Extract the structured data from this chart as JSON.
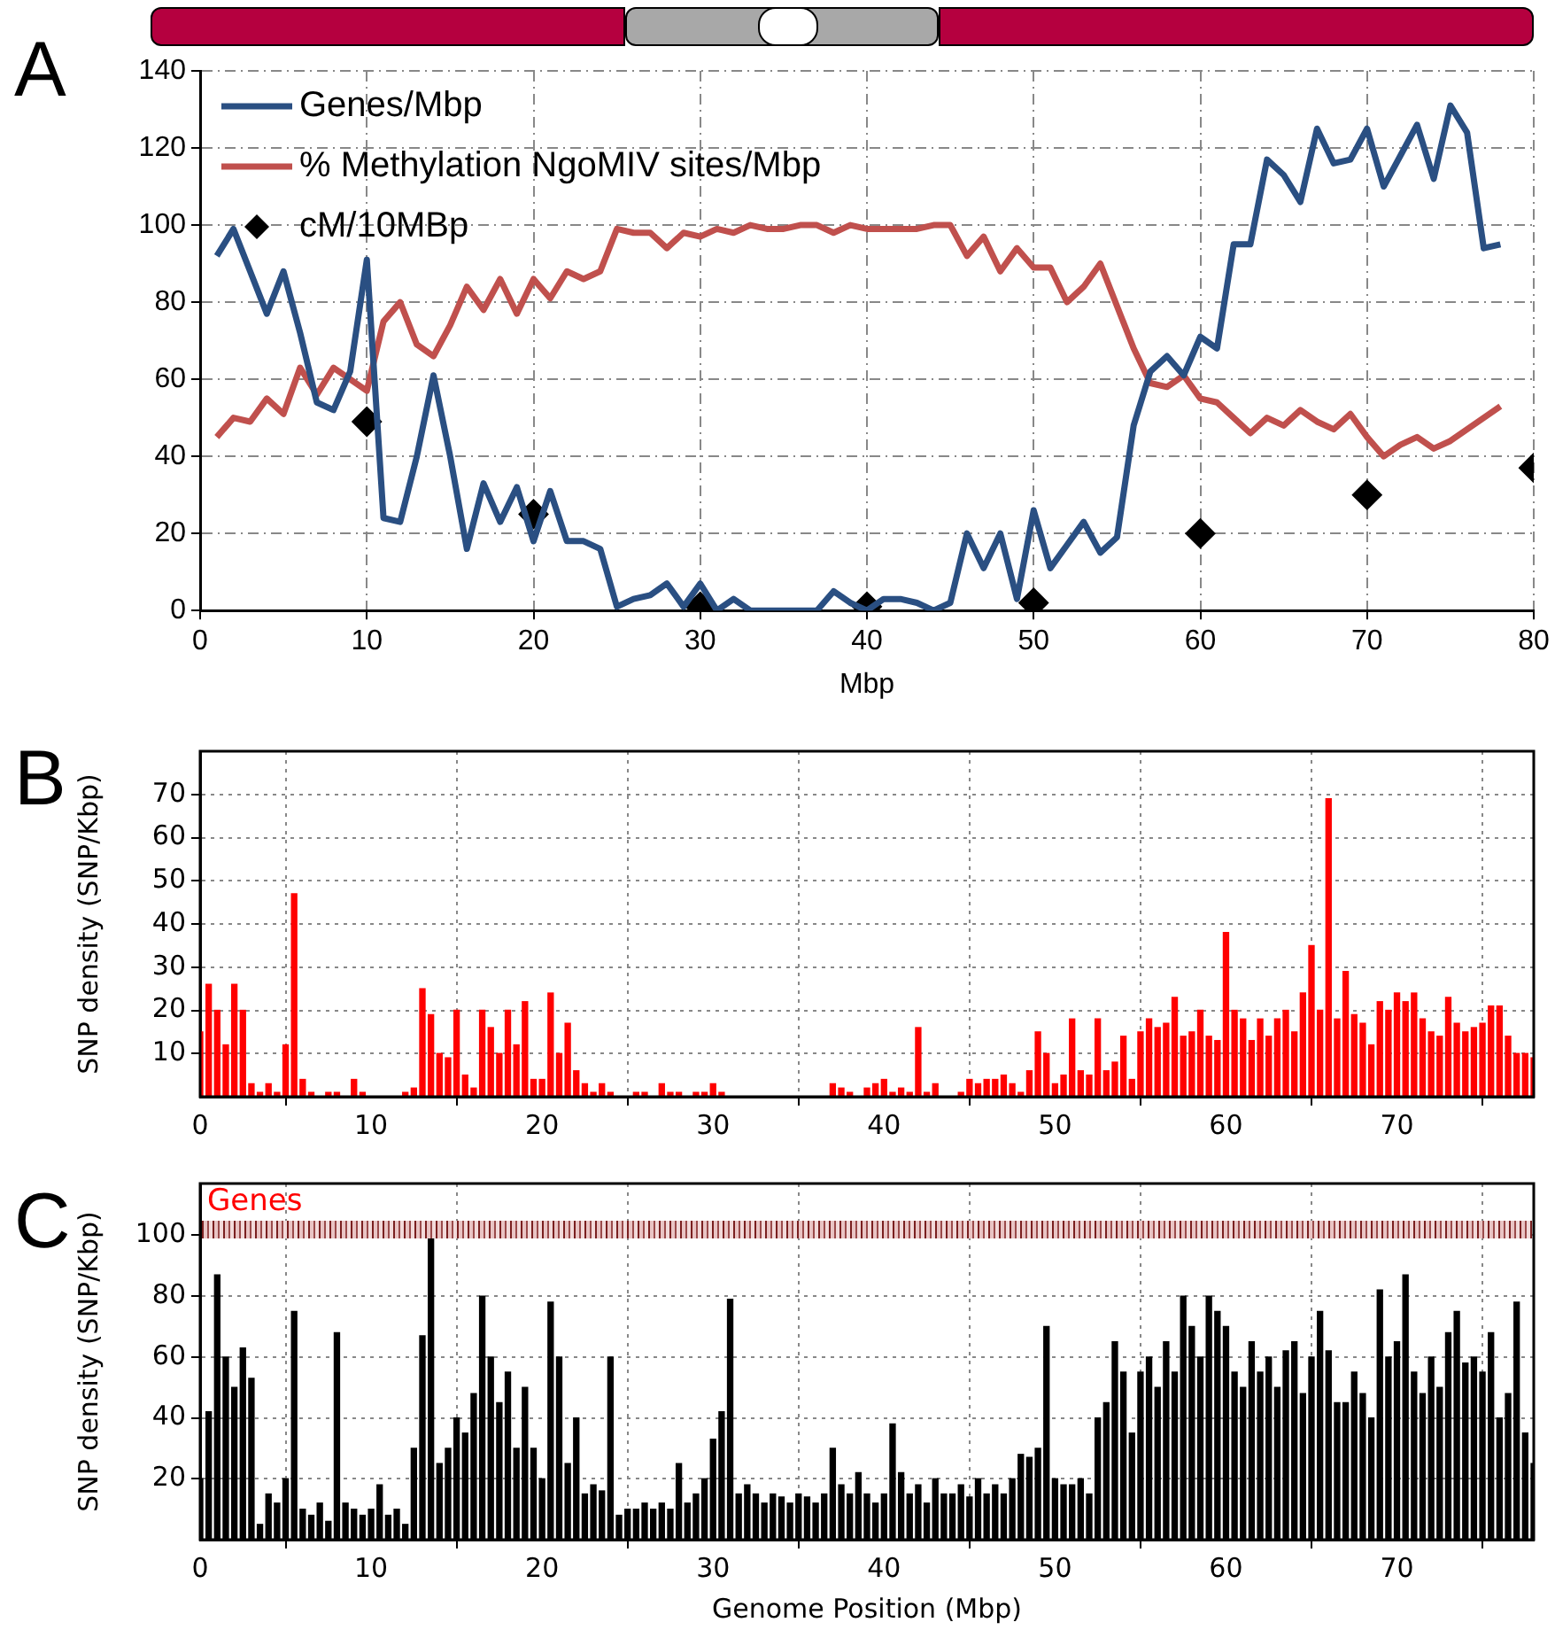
{
  "chart_data": [
    {
      "type": "line",
      "xlabel": "Mbp",
      "annotations": [
        "A"
      ],
      "xlim": [
        0,
        80
      ],
      "xticks": [
        0,
        10,
        20,
        30,
        40,
        50,
        60,
        70,
        80
      ],
      "ylim": [
        0,
        140
      ],
      "yticks": [
        0,
        20,
        40,
        60,
        80,
        100,
        120,
        140
      ],
      "grid": true,
      "legend": "top left",
      "x": [
        1,
        2,
        3,
        4,
        5,
        6,
        7,
        8,
        9,
        10,
        11,
        12,
        13,
        14,
        15,
        16,
        17,
        18,
        19,
        20,
        21,
        22,
        23,
        24,
        25,
        26,
        27,
        28,
        29,
        30,
        31,
        32,
        33,
        34,
        35,
        36,
        37,
        38,
        39,
        40,
        41,
        42,
        43,
        44,
        45,
        46,
        47,
        48,
        49,
        50,
        51,
        52,
        53,
        54,
        55,
        56,
        57,
        58,
        59,
        60,
        61,
        62,
        63,
        64,
        65,
        66,
        67,
        68,
        69,
        70,
        71,
        72,
        73,
        74,
        75,
        76,
        77,
        78
      ],
      "series": [
        {
          "name": "Genes/Mbp",
          "color": "#2a4f82",
          "values": [
            92,
            99,
            88,
            77,
            88,
            72,
            54,
            52,
            62,
            91,
            24,
            23,
            40,
            61,
            40,
            16,
            33,
            23,
            32,
            18,
            31,
            18,
            18,
            16,
            1,
            3,
            4,
            7,
            1,
            7,
            0,
            3,
            0,
            0,
            0,
            0,
            0,
            5,
            2,
            0,
            3,
            3,
            2,
            0,
            2,
            20,
            11,
            20,
            3,
            26,
            11,
            17,
            23,
            15,
            19,
            48,
            62,
            66,
            61,
            71,
            68,
            95,
            95,
            117,
            113,
            106,
            125,
            116,
            117,
            125,
            110,
            118,
            126,
            112,
            131,
            124,
            94,
            95
          ]
        },
        {
          "name": "% Methylation NgoMIV sites/Mbp",
          "color": "#c0504d",
          "values": [
            45,
            50,
            49,
            55,
            51,
            63,
            56,
            63,
            60,
            57,
            75,
            80,
            69,
            66,
            74,
            84,
            78,
            86,
            77,
            86,
            81,
            88,
            86,
            88,
            99,
            98,
            98,
            94,
            98,
            97,
            99,
            98,
            100,
            99,
            99,
            100,
            100,
            98,
            100,
            99,
            99,
            99,
            99,
            100,
            100,
            92,
            97,
            88,
            94,
            89,
            89,
            80,
            84,
            90,
            79,
            68,
            59,
            58,
            61,
            55,
            54,
            50,
            46,
            50,
            48,
            52,
            49,
            47,
            51,
            45,
            40,
            43,
            45,
            42,
            44,
            47,
            50,
            53
          ]
        },
        {
          "name": "cM/10MBp",
          "type": "scatter",
          "marker": "diamond",
          "color": "#000000",
          "x": [
            10,
            20,
            30,
            40,
            50,
            60,
            70,
            80
          ],
          "values": [
            49,
            25,
            1,
            1,
            2,
            20,
            30,
            37
          ]
        }
      ]
    },
    {
      "type": "bar",
      "ylabel": "SNP density (SNP/Kbp)",
      "annotations": [
        "B"
      ],
      "xlim": [
        0,
        78
      ],
      "xticks": [
        0,
        10,
        20,
        30,
        40,
        50,
        60,
        70
      ],
      "ylim": [
        0,
        80
      ],
      "yticks": [
        10,
        20,
        30,
        40,
        50,
        60,
        70
      ],
      "grid": true,
      "x": [
        0,
        0.5,
        1,
        1.5,
        2,
        2.5,
        3,
        3.5,
        4,
        4.5,
        5,
        5.5,
        6,
        6.5,
        7,
        7.5,
        8,
        8.5,
        9,
        9.5,
        10,
        10.5,
        11,
        11.5,
        12,
        12.5,
        13,
        13.5,
        14,
        14.5,
        15,
        15.5,
        16,
        16.5,
        17,
        17.5,
        18,
        18.5,
        19,
        19.5,
        20,
        20.5,
        21,
        21.5,
        22,
        22.5,
        23,
        23.5,
        24,
        24.5,
        25,
        25.5,
        26,
        26.5,
        27,
        27.5,
        28,
        28.5,
        29,
        29.5,
        30,
        30.5,
        31,
        31.5,
        32,
        32.5,
        33,
        33.5,
        34,
        34.5,
        35,
        35.5,
        36,
        36.5,
        37,
        37.5,
        38,
        38.5,
        39,
        39.5,
        40,
        40.5,
        41,
        41.5,
        42,
        42.5,
        43,
        43.5,
        44,
        44.5,
        45,
        45.5,
        46,
        46.5,
        47,
        47.5,
        48,
        48.5,
        49,
        49.5,
        50,
        50.5,
        51,
        51.5,
        52,
        52.5,
        53,
        53.5,
        54,
        54.5,
        55,
        55.5,
        56,
        56.5,
        57,
        57.5,
        58,
        58.5,
        59,
        59.5,
        60,
        60.5,
        61,
        61.5,
        62,
        62.5,
        63,
        63.5,
        64,
        64.5,
        65,
        65.5,
        66,
        66.5,
        67,
        67.5,
        68,
        68.5,
        69,
        69.5,
        70,
        70.5,
        71,
        71.5,
        72,
        72.5,
        73,
        73.5,
        74,
        74.5,
        75,
        75.5,
        76,
        76.5,
        77,
        77.5,
        78
      ],
      "series": [
        {
          "color": "#ff0000",
          "values": [
            15,
            26,
            20,
            12,
            26,
            20,
            3,
            1,
            3,
            1,
            12,
            47,
            4,
            1,
            0,
            1,
            1,
            0,
            4,
            1,
            0,
            0,
            0,
            0,
            1,
            2,
            25,
            19,
            10,
            9,
            20,
            5,
            2,
            20,
            16,
            10,
            20,
            12,
            22,
            4,
            4,
            24,
            10,
            17,
            6,
            3,
            1,
            3,
            1,
            0,
            0,
            1,
            1,
            0,
            3,
            1,
            1,
            0,
            1,
            1,
            3,
            1,
            0,
            0,
            0,
            0,
            0,
            0,
            0,
            0,
            0,
            0,
            0,
            0,
            3,
            2,
            1,
            0,
            2,
            3,
            4,
            1,
            2,
            1,
            16,
            1,
            3,
            0,
            0,
            1,
            4,
            3,
            4,
            4,
            5,
            3,
            1,
            6,
            15,
            10,
            3,
            5,
            18,
            6,
            5,
            18,
            6,
            8,
            14,
            4,
            15,
            18,
            16,
            17,
            23,
            14,
            15,
            20,
            14,
            13,
            38,
            20,
            18,
            13,
            18,
            14,
            18,
            20,
            15,
            24,
            35,
            20,
            69,
            18,
            29,
            19,
            17,
            12,
            22,
            20,
            24,
            22,
            24,
            18,
            15,
            14,
            23,
            17,
            15,
            16,
            17,
            21,
            21,
            14,
            10,
            10,
            9
          ]
        }
      ]
    },
    {
      "type": "bar",
      "xlabel": "Genome Position (Mbp)",
      "ylabel": "SNP density (SNP/Kbp)",
      "annotations": [
        "C",
        "Genes"
      ],
      "xlim": [
        0,
        78
      ],
      "xticks": [
        0,
        10,
        20,
        30,
        40,
        50,
        60,
        70
      ],
      "ylim": [
        0,
        117
      ],
      "yticks": [
        20,
        40,
        60,
        80,
        100
      ],
      "grid": true,
      "x": [
        0,
        0.5,
        1,
        1.5,
        2,
        2.5,
        3,
        3.5,
        4,
        4.5,
        5,
        5.5,
        6,
        6.5,
        7,
        7.5,
        8,
        8.5,
        9,
        9.5,
        10,
        10.5,
        11,
        11.5,
        12,
        12.5,
        13,
        13.5,
        14,
        14.5,
        15,
        15.5,
        16,
        16.5,
        17,
        17.5,
        18,
        18.5,
        19,
        19.5,
        20,
        20.5,
        21,
        21.5,
        22,
        22.5,
        23,
        23.5,
        24,
        24.5,
        25,
        25.5,
        26,
        26.5,
        27,
        27.5,
        28,
        28.5,
        29,
        29.5,
        30,
        30.5,
        31,
        31.5,
        32,
        32.5,
        33,
        33.5,
        34,
        34.5,
        35,
        35.5,
        36,
        36.5,
        37,
        37.5,
        38,
        38.5,
        39,
        39.5,
        40,
        40.5,
        41,
        41.5,
        42,
        42.5,
        43,
        43.5,
        44,
        44.5,
        45,
        45.5,
        46,
        46.5,
        47,
        47.5,
        48,
        48.5,
        49,
        49.5,
        50,
        50.5,
        51,
        51.5,
        52,
        52.5,
        53,
        53.5,
        54,
        54.5,
        55,
        55.5,
        56,
        56.5,
        57,
        57.5,
        58,
        58.5,
        59,
        59.5,
        60,
        60.5,
        61,
        61.5,
        62,
        62.5,
        63,
        63.5,
        64,
        64.5,
        65,
        65.5,
        66,
        66.5,
        67,
        67.5,
        68,
        68.5,
        69,
        69.5,
        70,
        70.5,
        71,
        71.5,
        72,
        72.5,
        73,
        73.5,
        74,
        74.5,
        75,
        75.5,
        76,
        76.5,
        77,
        77.5,
        78
      ],
      "series": [
        {
          "color": "#000000",
          "values": [
            20,
            42,
            87,
            60,
            50,
            63,
            53,
            5,
            15,
            12,
            20,
            75,
            10,
            8,
            12,
            6,
            68,
            12,
            10,
            8,
            10,
            18,
            8,
            10,
            5,
            30,
            67,
            99,
            25,
            30,
            40,
            35,
            48,
            80,
            60,
            45,
            55,
            30,
            50,
            30,
            20,
            78,
            60,
            25,
            40,
            15,
            18,
            16,
            60,
            8,
            10,
            10,
            12,
            10,
            12,
            10,
            25,
            12,
            15,
            20,
            33,
            42,
            79,
            15,
            18,
            15,
            12,
            15,
            14,
            12,
            15,
            14,
            12,
            15,
            30,
            18,
            15,
            22,
            15,
            12,
            15,
            38,
            22,
            15,
            18,
            12,
            20,
            15,
            15,
            18,
            14,
            20,
            15,
            18,
            15,
            20,
            28,
            27,
            30,
            70,
            20,
            18,
            18,
            20,
            15,
            40,
            45,
            65,
            55,
            35,
            55,
            60,
            50,
            65,
            55,
            80,
            70,
            60,
            80,
            75,
            70,
            55,
            50,
            65,
            55,
            60,
            50,
            62,
            65,
            48,
            60,
            75,
            62,
            45,
            45,
            55,
            48,
            40,
            82,
            60,
            65,
            87,
            55,
            48,
            60,
            50,
            68,
            75,
            58,
            60,
            55,
            68,
            40,
            48,
            78,
            35,
            25
          ]
        }
      ]
    }
  ]
}
